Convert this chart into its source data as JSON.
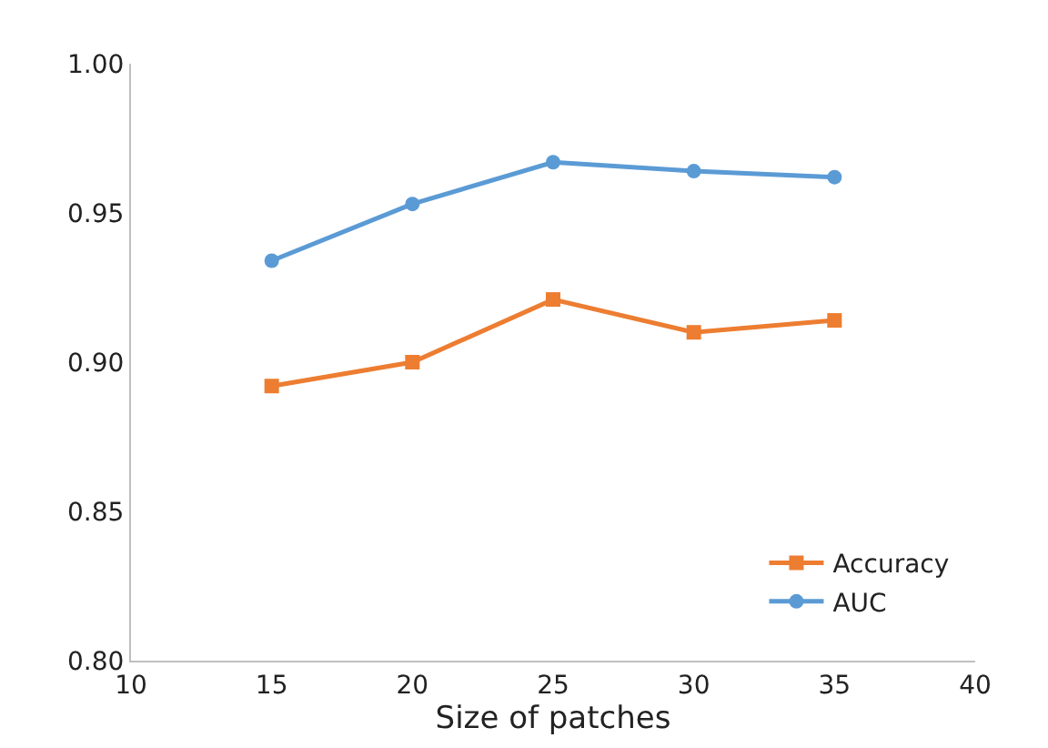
{
  "chart_data": {
    "type": "line",
    "xlabel": "Size of patches",
    "x": [
      15,
      20,
      25,
      30,
      35
    ],
    "series": [
      {
        "name": "Accuracy",
        "color": "#ed7d31",
        "marker": "square",
        "values": [
          0.892,
          0.9,
          0.921,
          0.91,
          0.914
        ]
      },
      {
        "name": "AUC",
        "color": "#5b9bd5",
        "marker": "circle",
        "values": [
          0.934,
          0.953,
          0.967,
          0.964,
          0.962
        ]
      }
    ],
    "xlim": [
      10,
      40
    ],
    "xticks": [
      10,
      15,
      20,
      25,
      30,
      35,
      40
    ],
    "ylim": [
      0.8,
      1.0
    ],
    "yticks": [
      {
        "value": 0.8,
        "label": "0.80"
      },
      {
        "value": 0.85,
        "label": "0.85"
      },
      {
        "value": 0.9,
        "label": "0.90"
      },
      {
        "value": 0.95,
        "label": "0.95"
      },
      {
        "value": 1.0,
        "label": "1.00"
      }
    ],
    "grid": false,
    "legend": "bottom right",
    "line_style": "solid"
  }
}
